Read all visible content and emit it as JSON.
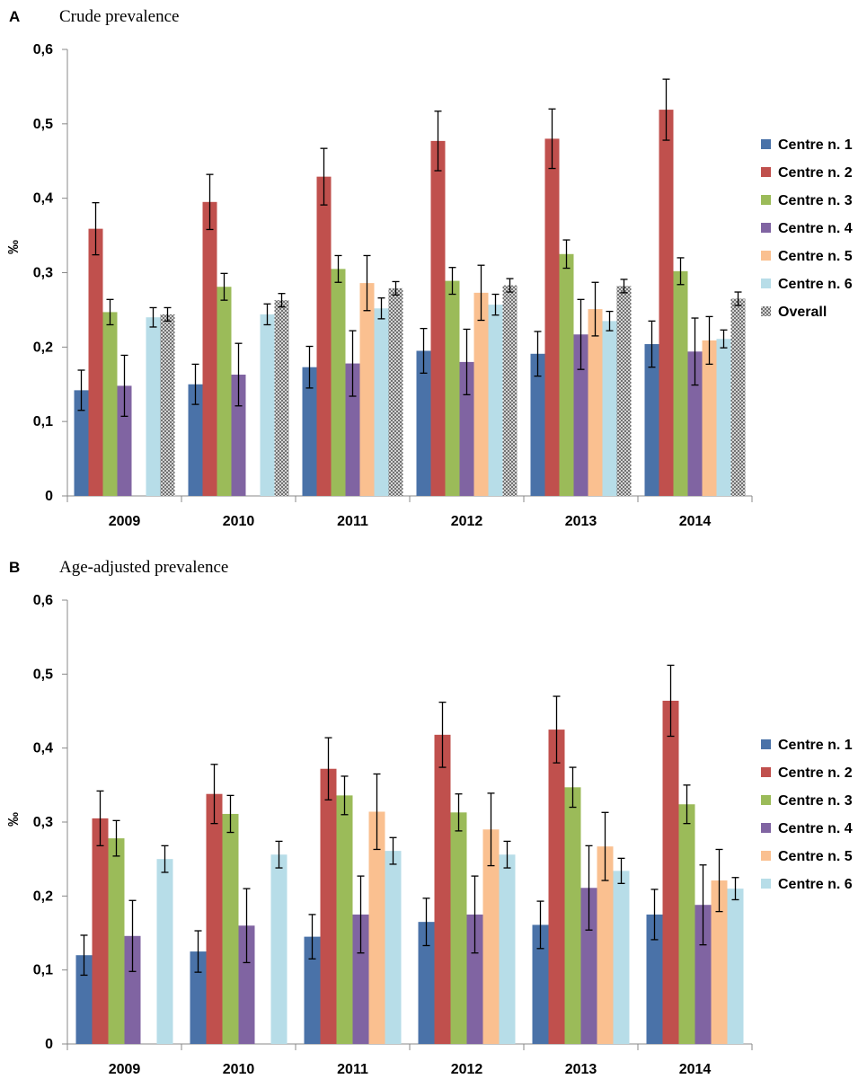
{
  "figure": {
    "overall_pattern": "crosshatch"
  },
  "chart_data": [
    {
      "type": "bar",
      "panel_letter": "A",
      "title": "Crude prevalence",
      "xlabel": "",
      "ylabel": "‰",
      "ylim": [
        0,
        0.6
      ],
      "yticks": [
        "0",
        "0,1",
        "0,2",
        "0,3",
        "0,4",
        "0,5",
        "0,6"
      ],
      "categories": [
        "2009",
        "2010",
        "2011",
        "2012",
        "2013",
        "2014"
      ],
      "legend_position": "right",
      "series": [
        {
          "name": "Centre n. 1",
          "color": "#4a72a8",
          "values": [
            0.142,
            0.15,
            0.173,
            0.195,
            0.191,
            0.204
          ],
          "err": [
            0.027,
            0.027,
            0.028,
            0.03,
            0.03,
            0.031
          ]
        },
        {
          "name": "Centre n. 2",
          "color": "#c0504d",
          "values": [
            0.359,
            0.395,
            0.429,
            0.477,
            0.48,
            0.519
          ],
          "err": [
            0.035,
            0.037,
            0.038,
            0.04,
            0.04,
            0.041
          ]
        },
        {
          "name": "Centre n. 3",
          "color": "#9bbb59",
          "values": [
            0.247,
            0.281,
            0.305,
            0.289,
            0.325,
            0.302
          ],
          "err": [
            0.017,
            0.018,
            0.018,
            0.018,
            0.019,
            0.018
          ]
        },
        {
          "name": "Centre n. 4",
          "color": "#8064a2",
          "values": [
            0.148,
            0.163,
            0.178,
            0.18,
            0.217,
            0.194
          ],
          "err": [
            0.041,
            0.042,
            0.044,
            0.044,
            0.047,
            0.045
          ]
        },
        {
          "name": "Centre n. 5",
          "color": "#fac090",
          "values": [
            0,
            0,
            0.286,
            0.273,
            0.251,
            0.209
          ],
          "err": [
            0,
            0,
            0.037,
            0.037,
            0.036,
            0.032
          ]
        },
        {
          "name": "Centre n. 6",
          "color": "#b7dde8",
          "values": [
            0.24,
            0.244,
            0.252,
            0.257,
            0.235,
            0.211
          ],
          "err": [
            0.013,
            0.014,
            0.014,
            0.014,
            0.013,
            0.012
          ]
        },
        {
          "name": "Overall",
          "color": "#9a9a9a",
          "values": [
            0.244,
            0.263,
            0.279,
            0.283,
            0.282,
            0.265
          ],
          "err": [
            0.009,
            0.009,
            0.009,
            0.009,
            0.009,
            0.009
          ]
        }
      ]
    },
    {
      "type": "bar",
      "panel_letter": "B",
      "title": "Age-adjusted prevalence",
      "xlabel": "",
      "ylabel": "‰",
      "ylim": [
        0,
        0.6
      ],
      "yticks": [
        "0",
        "0,1",
        "0,2",
        "0,3",
        "0,4",
        "0,5",
        "0,6"
      ],
      "categories": [
        "2009",
        "2010",
        "2011",
        "2012",
        "2013",
        "2014"
      ],
      "legend_position": "right",
      "series": [
        {
          "name": "Centre n. 1",
          "color": "#4a72a8",
          "values": [
            0.12,
            0.125,
            0.145,
            0.165,
            0.161,
            0.175
          ],
          "err": [
            0.027,
            0.028,
            0.03,
            0.032,
            0.032,
            0.034
          ]
        },
        {
          "name": "Centre n. 2",
          "color": "#c0504d",
          "values": [
            0.305,
            0.338,
            0.372,
            0.418,
            0.425,
            0.464
          ],
          "err": [
            0.037,
            0.04,
            0.042,
            0.044,
            0.045,
            0.048
          ]
        },
        {
          "name": "Centre n. 3",
          "color": "#9bbb59",
          "values": [
            0.278,
            0.311,
            0.336,
            0.313,
            0.347,
            0.324
          ],
          "err": [
            0.024,
            0.025,
            0.026,
            0.025,
            0.027,
            0.026
          ]
        },
        {
          "name": "Centre n. 4",
          "color": "#8064a2",
          "values": [
            0.146,
            0.16,
            0.175,
            0.175,
            0.211,
            0.188
          ],
          "err": [
            0.048,
            0.05,
            0.052,
            0.052,
            0.057,
            0.054
          ]
        },
        {
          "name": "Centre n. 5",
          "color": "#fac090",
          "values": [
            0,
            0,
            0.314,
            0.29,
            0.267,
            0.221
          ],
          "err": [
            0,
            0,
            0.051,
            0.049,
            0.046,
            0.042
          ]
        },
        {
          "name": "Centre n. 6",
          "color": "#b7dde8",
          "values": [
            0.25,
            0.256,
            0.261,
            0.256,
            0.234,
            0.21
          ],
          "err": [
            0.018,
            0.018,
            0.018,
            0.018,
            0.017,
            0.015
          ]
        }
      ]
    }
  ]
}
